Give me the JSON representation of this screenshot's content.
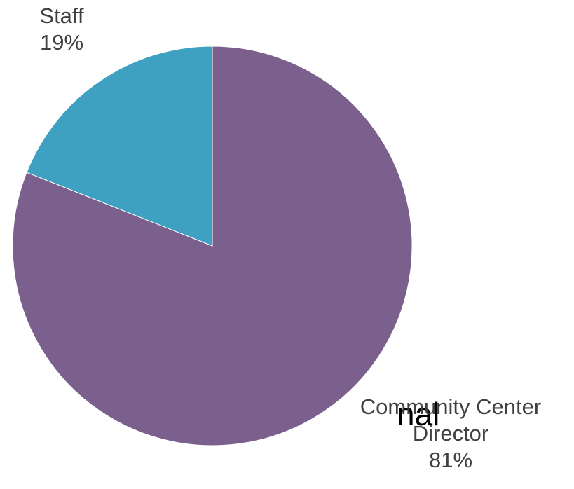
{
  "page": {
    "background_text_fragment": "nal"
  },
  "chart_data": {
    "type": "pie",
    "start_angle_deg": 0,
    "direction": "clockwise",
    "slices": [
      {
        "label": "Community Center Director",
        "label_lines": [
          "Community Center",
          "Director"
        ],
        "value": 81,
        "percent_label": "81%",
        "color": "#7B608E"
      },
      {
        "label": "Staff",
        "label_lines": [
          "Staff"
        ],
        "value": 19,
        "percent_label": "19%",
        "color": "#3EA1C1"
      }
    ],
    "slice_separator_color": "#ffffff",
    "legend": "none",
    "data_labels": "outside"
  }
}
